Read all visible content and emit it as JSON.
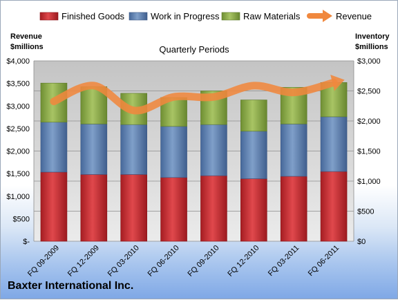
{
  "chart_data": {
    "type": "bar",
    "stacked": true,
    "title": "Quarterly Periods",
    "company": "Baxter International Inc.",
    "categories": [
      "FQ 09-2009",
      "FQ 12-2009",
      "FQ 03-2010",
      "FQ 06-2010",
      "FQ 09-2010",
      "FQ 12-2010",
      "FQ 03-2011",
      "FQ 06-2011"
    ],
    "series": [
      {
        "name": "Finished Goods",
        "axis": "right",
        "color": "#c0272d",
        "values": [
          1150,
          1110,
          1110,
          1060,
          1090,
          1040,
          1080,
          1160
        ]
      },
      {
        "name": "Work in Progress",
        "axis": "right",
        "color": "#5b7fae",
        "values": [
          830,
          840,
          830,
          850,
          850,
          790,
          870,
          910
        ]
      },
      {
        "name": "Raw Materials",
        "axis": "right",
        "color": "#86a644",
        "values": [
          650,
          620,
          520,
          480,
          560,
          520,
          610,
          570
        ]
      }
    ],
    "line_series": {
      "name": "Revenue",
      "axis": "left",
      "color": "#f0883e",
      "values": [
        3100,
        3450,
        2900,
        3200,
        3200,
        3450,
        3300,
        3520
      ]
    },
    "left_axis": {
      "label_line1": "Revenue",
      "label_line2": "$millions",
      "min": 0,
      "max": 4000,
      "step": 500,
      "tick_labels": [
        "$-",
        "$500",
        "$1,000",
        "$1,500",
        "$2,000",
        "$2,500",
        "$3,000",
        "$3,500",
        "$4,000"
      ]
    },
    "right_axis": {
      "label_line1": "Inventory",
      "label_line2": "$millions",
      "min": 0,
      "max": 3000,
      "step": 500,
      "tick_labels": [
        "$0",
        "$500",
        "$1,000",
        "$1,500",
        "$2,000",
        "$2,500",
        "$3,000"
      ]
    },
    "grid": true,
    "legend_position": "top"
  }
}
